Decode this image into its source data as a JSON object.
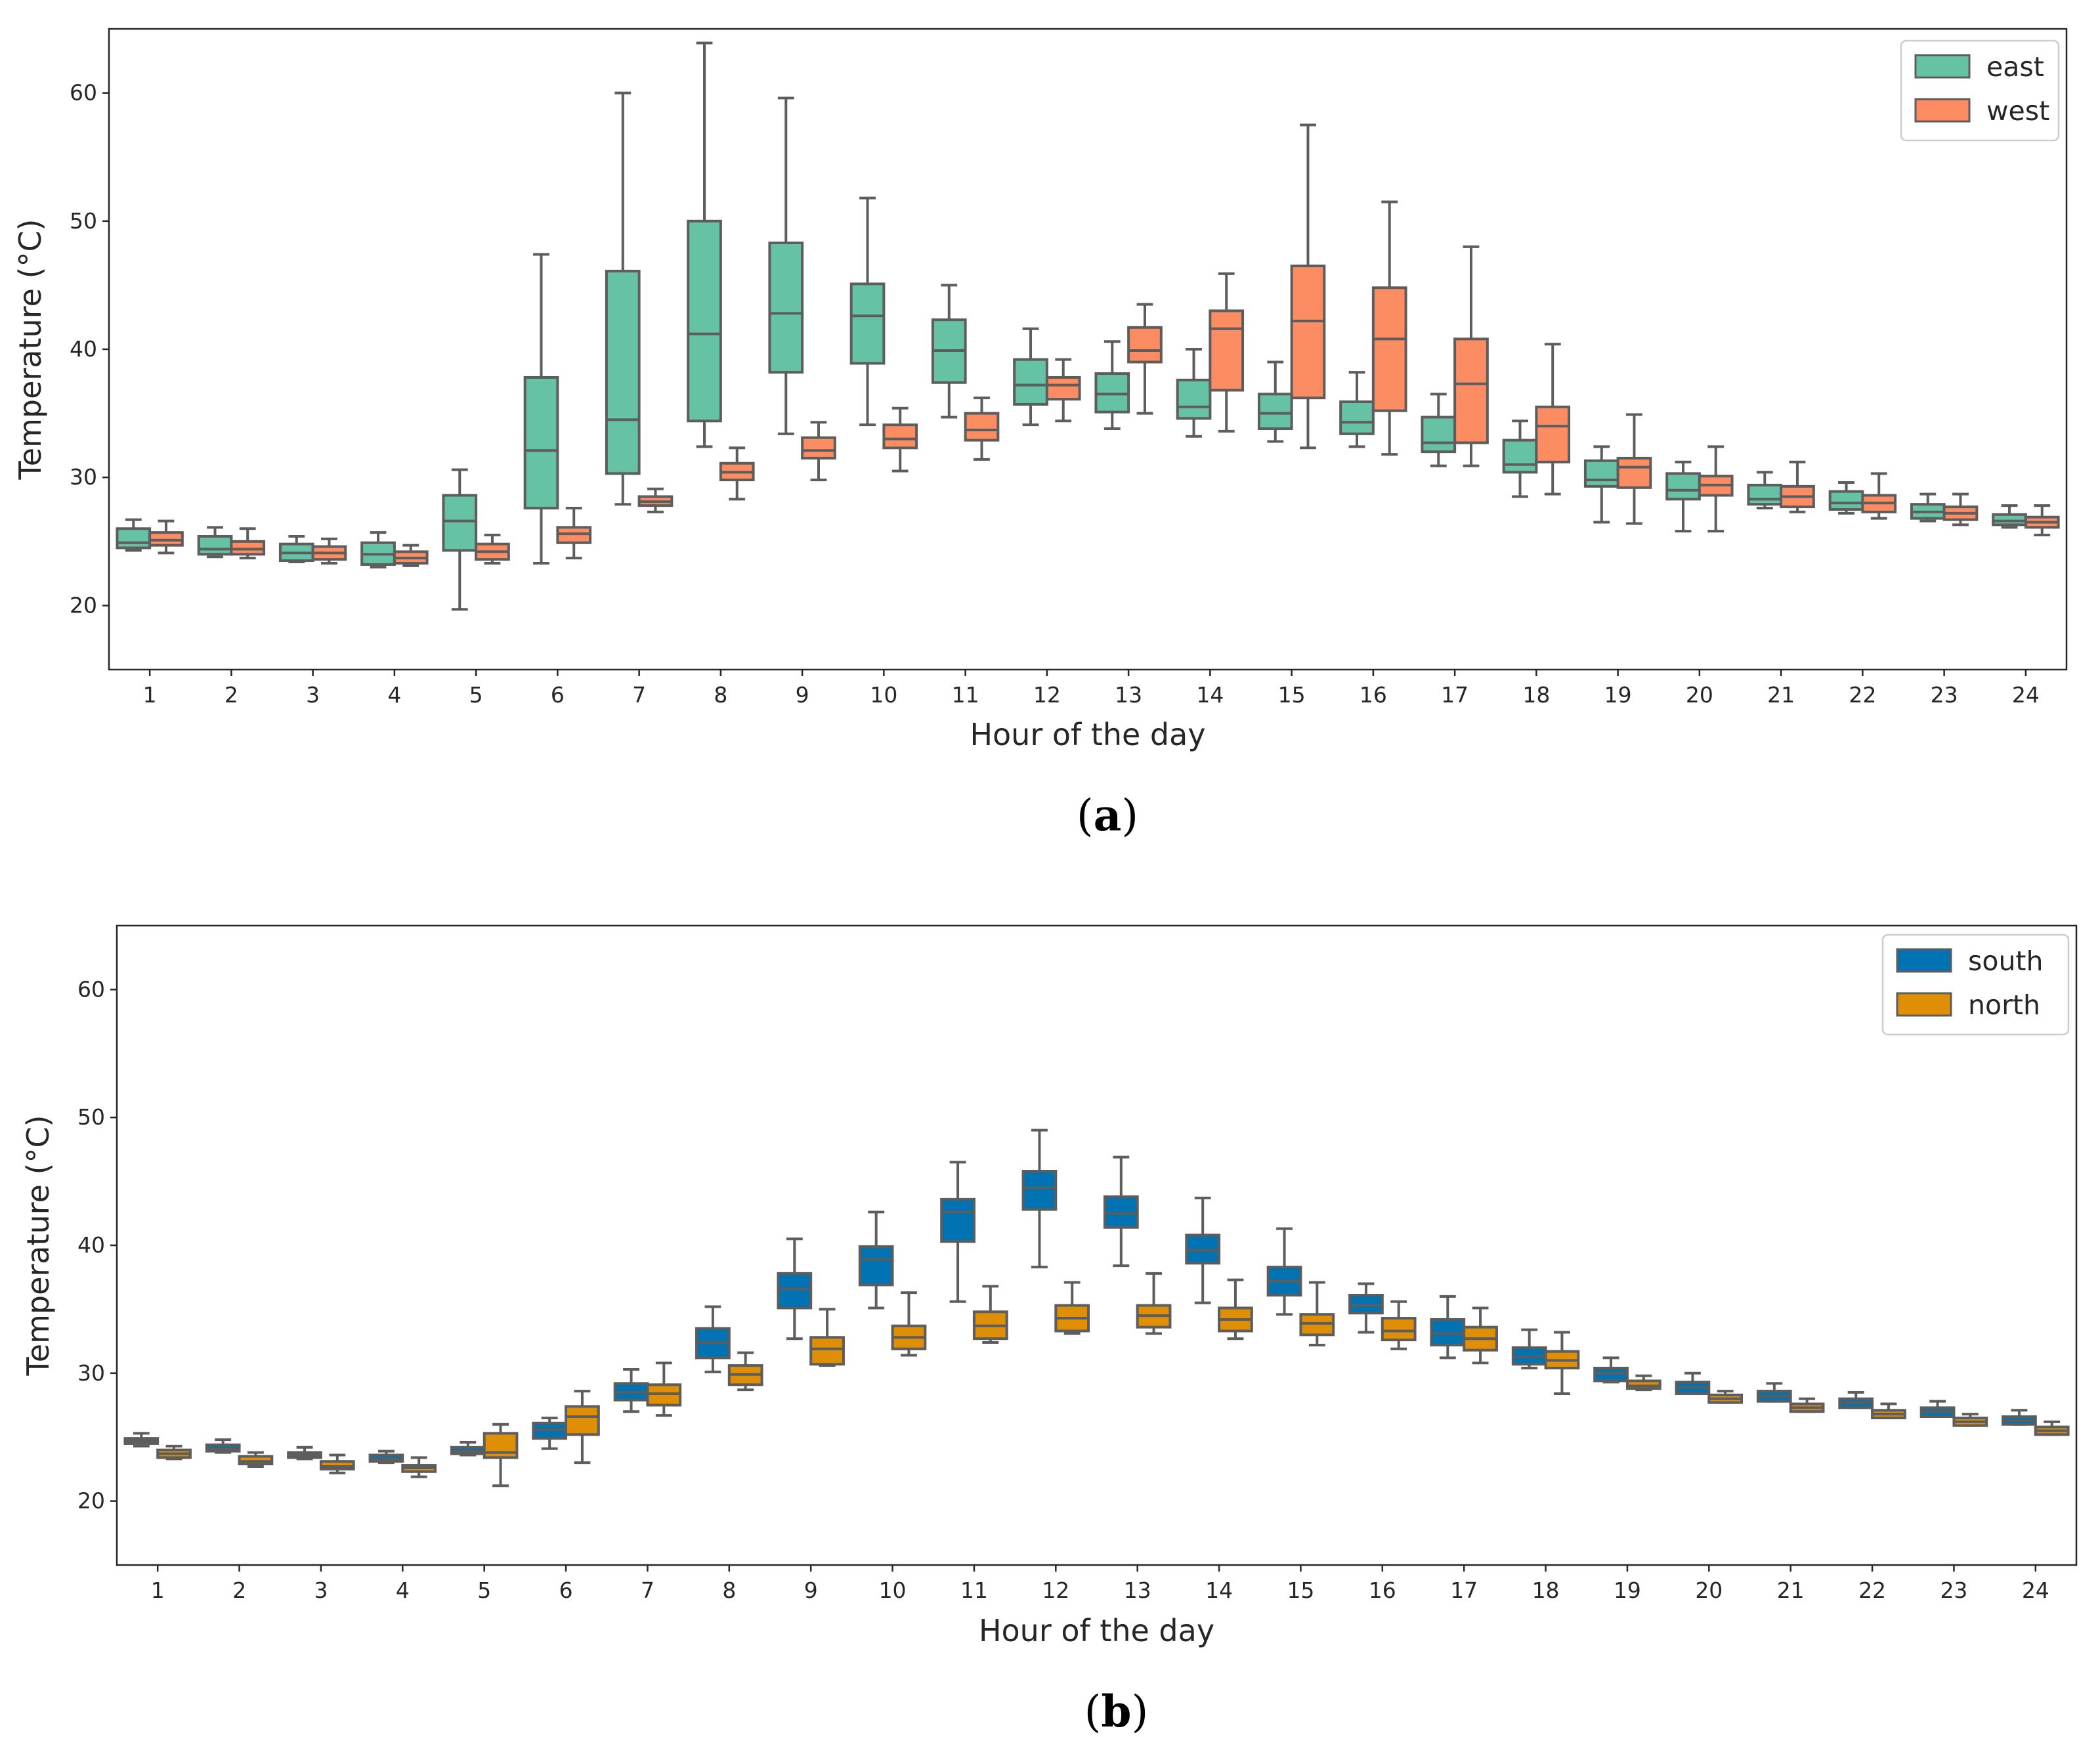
{
  "chart_data": [
    {
      "type": "box",
      "panel_label": "a",
      "xlabel": "Hour of the day",
      "ylabel": "Temperature (°C)",
      "ylim": [
        15,
        65
      ],
      "yticks": [
        20,
        30,
        40,
        50,
        60
      ],
      "categories": [
        "1",
        "2",
        "3",
        "4",
        "5",
        "6",
        "7",
        "8",
        "9",
        "10",
        "11",
        "12",
        "13",
        "14",
        "15",
        "16",
        "17",
        "18",
        "19",
        "20",
        "21",
        "22",
        "23",
        "24"
      ],
      "legend_position": "top-right",
      "grid": false,
      "series": [
        {
          "name": "east",
          "color": "#66c2a5",
          "boxes": [
            {
              "min": 24.3,
              "q1": 24.5,
              "median": 24.9,
              "q3": 26.0,
              "max": 26.7
            },
            {
              "min": 23.8,
              "q1": 24.0,
              "median": 24.4,
              "q3": 25.4,
              "max": 26.1
            },
            {
              "min": 23.4,
              "q1": 23.5,
              "median": 24.1,
              "q3": 24.8,
              "max": 25.4
            },
            {
              "min": 23.0,
              "q1": 23.2,
              "median": 24.0,
              "q3": 24.9,
              "max": 25.7
            },
            {
              "min": 19.7,
              "q1": 24.3,
              "median": 26.6,
              "q3": 28.6,
              "max": 30.6
            },
            {
              "min": 23.3,
              "q1": 27.6,
              "median": 32.1,
              "q3": 37.8,
              "max": 47.4
            },
            {
              "min": 27.9,
              "q1": 30.3,
              "median": 34.5,
              "q3": 46.1,
              "max": 60.0
            },
            {
              "min": 32.4,
              "q1": 34.4,
              "median": 41.2,
              "q3": 50.0,
              "max": 63.9
            },
            {
              "min": 33.4,
              "q1": 38.2,
              "median": 42.8,
              "q3": 48.3,
              "max": 59.6
            },
            {
              "min": 34.1,
              "q1": 38.9,
              "median": 42.6,
              "q3": 45.1,
              "max": 51.8
            },
            {
              "min": 34.7,
              "q1": 37.4,
              "median": 39.9,
              "q3": 42.3,
              "max": 45.0
            },
            {
              "min": 34.1,
              "q1": 35.7,
              "median": 37.2,
              "q3": 39.2,
              "max": 41.6
            },
            {
              "min": 33.8,
              "q1": 35.1,
              "median": 36.5,
              "q3": 38.1,
              "max": 40.6
            },
            {
              "min": 33.2,
              "q1": 34.6,
              "median": 35.5,
              "q3": 37.6,
              "max": 40.0
            },
            {
              "min": 32.8,
              "q1": 33.8,
              "median": 35.0,
              "q3": 36.5,
              "max": 39.0
            },
            {
              "min": 32.4,
              "q1": 33.4,
              "median": 34.3,
              "q3": 35.9,
              "max": 38.2
            },
            {
              "min": 30.9,
              "q1": 32.0,
              "median": 32.7,
              "q3": 34.7,
              "max": 36.5
            },
            {
              "min": 28.5,
              "q1": 30.4,
              "median": 31.0,
              "q3": 32.9,
              "max": 34.4
            },
            {
              "min": 26.5,
              "q1": 29.3,
              "median": 29.8,
              "q3": 31.3,
              "max": 32.4
            },
            {
              "min": 25.8,
              "q1": 28.3,
              "median": 29.0,
              "q3": 30.3,
              "max": 31.2
            },
            {
              "min": 27.6,
              "q1": 27.9,
              "median": 28.3,
              "q3": 29.4,
              "max": 30.4
            },
            {
              "min": 27.2,
              "q1": 27.5,
              "median": 28.0,
              "q3": 28.9,
              "max": 29.6
            },
            {
              "min": 26.6,
              "q1": 26.8,
              "median": 27.3,
              "q3": 27.9,
              "max": 28.7
            },
            {
              "min": 26.1,
              "q1": 26.3,
              "median": 26.6,
              "q3": 27.1,
              "max": 27.8
            }
          ]
        },
        {
          "name": "west",
          "color": "#fc8d62",
          "boxes": [
            {
              "min": 24.1,
              "q1": 24.7,
              "median": 25.1,
              "q3": 25.7,
              "max": 26.6
            },
            {
              "min": 23.7,
              "q1": 24.0,
              "median": 24.4,
              "q3": 25.0,
              "max": 26.0
            },
            {
              "min": 23.3,
              "q1": 23.6,
              "median": 24.1,
              "q3": 24.6,
              "max": 25.2
            },
            {
              "min": 23.1,
              "q1": 23.3,
              "median": 23.7,
              "q3": 24.2,
              "max": 24.7
            },
            {
              "min": 23.3,
              "q1": 23.6,
              "median": 24.2,
              "q3": 24.8,
              "max": 25.5
            },
            {
              "min": 23.7,
              "q1": 24.9,
              "median": 25.6,
              "q3": 26.1,
              "max": 27.6
            },
            {
              "min": 27.3,
              "q1": 27.8,
              "median": 28.1,
              "q3": 28.5,
              "max": 29.1
            },
            {
              "min": 28.3,
              "q1": 29.8,
              "median": 30.4,
              "q3": 31.1,
              "max": 32.3
            },
            {
              "min": 29.8,
              "q1": 31.5,
              "median": 32.1,
              "q3": 33.1,
              "max": 34.3
            },
            {
              "min": 30.5,
              "q1": 32.3,
              "median": 33.0,
              "q3": 34.1,
              "max": 35.4
            },
            {
              "min": 31.4,
              "q1": 32.9,
              "median": 33.7,
              "q3": 35.0,
              "max": 36.2
            },
            {
              "min": 34.4,
              "q1": 36.1,
              "median": 37.2,
              "q3": 37.8,
              "max": 39.2
            },
            {
              "min": 35.0,
              "q1": 39.0,
              "median": 39.9,
              "q3": 41.7,
              "max": 43.5
            },
            {
              "min": 33.6,
              "q1": 36.8,
              "median": 41.6,
              "q3": 43.0,
              "max": 45.9
            },
            {
              "min": 32.3,
              "q1": 36.2,
              "median": 42.2,
              "q3": 46.5,
              "max": 57.5
            },
            {
              "min": 31.8,
              "q1": 35.2,
              "median": 40.8,
              "q3": 44.8,
              "max": 51.5
            },
            {
              "min": 30.9,
              "q1": 32.7,
              "median": 37.3,
              "q3": 40.8,
              "max": 48.0
            },
            {
              "min": 28.7,
              "q1": 31.2,
              "median": 34.0,
              "q3": 35.5,
              "max": 40.4
            },
            {
              "min": 26.4,
              "q1": 29.2,
              "median": 30.8,
              "q3": 31.5,
              "max": 34.9
            },
            {
              "min": 25.8,
              "q1": 28.6,
              "median": 29.4,
              "q3": 30.1,
              "max": 32.4
            },
            {
              "min": 27.3,
              "q1": 27.7,
              "median": 28.5,
              "q3": 29.3,
              "max": 31.2
            },
            {
              "min": 26.8,
              "q1": 27.3,
              "median": 28.0,
              "q3": 28.6,
              "max": 30.3
            },
            {
              "min": 26.3,
              "q1": 26.7,
              "median": 27.2,
              "q3": 27.7,
              "max": 28.7
            },
            {
              "min": 25.5,
              "q1": 26.1,
              "median": 26.5,
              "q3": 26.9,
              "max": 27.8
            }
          ]
        }
      ]
    },
    {
      "type": "box",
      "panel_label": "b",
      "xlabel": "Hour of the day",
      "ylabel": "Temperature (°C)",
      "ylim": [
        15,
        65
      ],
      "yticks": [
        20,
        30,
        40,
        50,
        60
      ],
      "categories": [
        "1",
        "2",
        "3",
        "4",
        "5",
        "6",
        "7",
        "8",
        "9",
        "10",
        "11",
        "12",
        "13",
        "14",
        "15",
        "16",
        "17",
        "18",
        "19",
        "20",
        "21",
        "22",
        "23",
        "24"
      ],
      "legend_position": "top-right",
      "grid": false,
      "series": [
        {
          "name": "south",
          "color": "#0173b2",
          "boxes": [
            {
              "min": 24.3,
              "q1": 24.5,
              "median": 24.7,
              "q3": 24.9,
              "max": 25.3
            },
            {
              "min": 23.8,
              "q1": 23.9,
              "median": 24.1,
              "q3": 24.4,
              "max": 24.8
            },
            {
              "min": 23.3,
              "q1": 23.4,
              "median": 23.6,
              "q3": 23.8,
              "max": 24.2
            },
            {
              "min": 23.0,
              "q1": 23.1,
              "median": 23.3,
              "q3": 23.6,
              "max": 23.9
            },
            {
              "min": 23.6,
              "q1": 23.7,
              "median": 23.9,
              "q3": 24.2,
              "max": 24.6
            },
            {
              "min": 24.1,
              "q1": 24.9,
              "median": 25.6,
              "q3": 26.1,
              "max": 26.5
            },
            {
              "min": 27.0,
              "q1": 27.9,
              "median": 28.5,
              "q3": 29.2,
              "max": 30.3
            },
            {
              "min": 30.1,
              "q1": 31.2,
              "median": 32.4,
              "q3": 33.5,
              "max": 35.2
            },
            {
              "min": 32.7,
              "q1": 35.1,
              "median": 36.6,
              "q3": 37.8,
              "max": 40.5
            },
            {
              "min": 35.1,
              "q1": 36.9,
              "median": 38.9,
              "q3": 39.9,
              "max": 42.6
            },
            {
              "min": 35.6,
              "q1": 40.3,
              "median": 42.6,
              "q3": 43.6,
              "max": 46.5
            },
            {
              "min": 38.3,
              "q1": 42.8,
              "median": 44.5,
              "q3": 45.8,
              "max": 49.0
            },
            {
              "min": 38.4,
              "q1": 41.4,
              "median": 42.5,
              "q3": 43.8,
              "max": 46.9
            },
            {
              "min": 35.5,
              "q1": 38.6,
              "median": 39.6,
              "q3": 40.8,
              "max": 43.7
            },
            {
              "min": 34.6,
              "q1": 36.1,
              "median": 37.2,
              "q3": 38.3,
              "max": 41.3
            },
            {
              "min": 33.2,
              "q1": 34.7,
              "median": 35.3,
              "q3": 36.1,
              "max": 37.0
            },
            {
              "min": 31.2,
              "q1": 32.2,
              "median": 33.1,
              "q3": 34.2,
              "max": 36.0
            },
            {
              "min": 30.4,
              "q1": 30.7,
              "median": 31.3,
              "q3": 32.0,
              "max": 33.4
            },
            {
              "min": 29.3,
              "q1": 29.4,
              "median": 30.0,
              "q3": 30.4,
              "max": 31.2
            },
            {
              "min": 28.4,
              "q1": 28.4,
              "median": 28.9,
              "q3": 29.3,
              "max": 30.0
            },
            {
              "min": 27.8,
              "q1": 27.8,
              "median": 28.2,
              "q3": 28.6,
              "max": 29.2
            },
            {
              "min": 27.3,
              "q1": 27.3,
              "median": 27.7,
              "q3": 28.0,
              "max": 28.5
            },
            {
              "min": 26.6,
              "q1": 26.6,
              "median": 27.0,
              "q3": 27.3,
              "max": 27.8
            },
            {
              "min": 26.0,
              "q1": 26.0,
              "median": 26.3,
              "q3": 26.6,
              "max": 27.1
            }
          ]
        },
        {
          "name": "north",
          "color": "#de8f05",
          "boxes": [
            {
              "min": 23.3,
              "q1": 23.4,
              "median": 23.7,
              "q3": 24.0,
              "max": 24.3
            },
            {
              "min": 22.7,
              "q1": 22.9,
              "median": 23.1,
              "q3": 23.5,
              "max": 23.8
            },
            {
              "min": 22.2,
              "q1": 22.5,
              "median": 22.7,
              "q3": 23.1,
              "max": 23.6
            },
            {
              "min": 21.9,
              "q1": 22.3,
              "median": 22.6,
              "q3": 22.8,
              "max": 23.4
            },
            {
              "min": 21.2,
              "q1": 23.4,
              "median": 23.8,
              "q3": 25.3,
              "max": 26.0
            },
            {
              "min": 23.0,
              "q1": 25.2,
              "median": 26.6,
              "q3": 27.4,
              "max": 28.6
            },
            {
              "min": 26.7,
              "q1": 27.5,
              "median": 28.4,
              "q3": 29.1,
              "max": 30.8
            },
            {
              "min": 28.7,
              "q1": 29.1,
              "median": 29.9,
              "q3": 30.6,
              "max": 31.6
            },
            {
              "min": 30.6,
              "q1": 30.7,
              "median": 31.9,
              "q3": 32.8,
              "max": 35.0
            },
            {
              "min": 31.4,
              "q1": 31.9,
              "median": 32.8,
              "q3": 33.7,
              "max": 36.3
            },
            {
              "min": 32.4,
              "q1": 32.7,
              "median": 33.7,
              "q3": 34.8,
              "max": 36.8
            },
            {
              "min": 33.1,
              "q1": 33.3,
              "median": 34.3,
              "q3": 35.3,
              "max": 37.1
            },
            {
              "min": 33.1,
              "q1": 33.6,
              "median": 34.5,
              "q3": 35.3,
              "max": 37.8
            },
            {
              "min": 32.7,
              "q1": 33.3,
              "median": 34.2,
              "q3": 35.1,
              "max": 37.3
            },
            {
              "min": 32.2,
              "q1": 33.0,
              "median": 33.9,
              "q3": 34.6,
              "max": 37.1
            },
            {
              "min": 31.9,
              "q1": 32.6,
              "median": 33.3,
              "q3": 34.3,
              "max": 35.6
            },
            {
              "min": 30.8,
              "q1": 31.8,
              "median": 32.7,
              "q3": 33.6,
              "max": 35.1
            },
            {
              "min": 28.4,
              "q1": 30.4,
              "median": 31.0,
              "q3": 31.7,
              "max": 33.2
            },
            {
              "min": 28.7,
              "q1": 28.8,
              "median": 29.0,
              "q3": 29.4,
              "max": 29.8
            },
            {
              "min": 27.7,
              "q1": 27.7,
              "median": 28.0,
              "q3": 28.3,
              "max": 28.6
            },
            {
              "min": 27.0,
              "q1": 27.0,
              "median": 27.3,
              "q3": 27.6,
              "max": 28.0
            },
            {
              "min": 26.5,
              "q1": 26.5,
              "median": 26.8,
              "q3": 27.1,
              "max": 27.6
            },
            {
              "min": 25.9,
              "q1": 25.9,
              "median": 26.2,
              "q3": 26.5,
              "max": 26.8
            },
            {
              "min": 25.2,
              "q1": 25.2,
              "median": 25.5,
              "q3": 25.8,
              "max": 26.2
            }
          ]
        }
      ]
    }
  ]
}
